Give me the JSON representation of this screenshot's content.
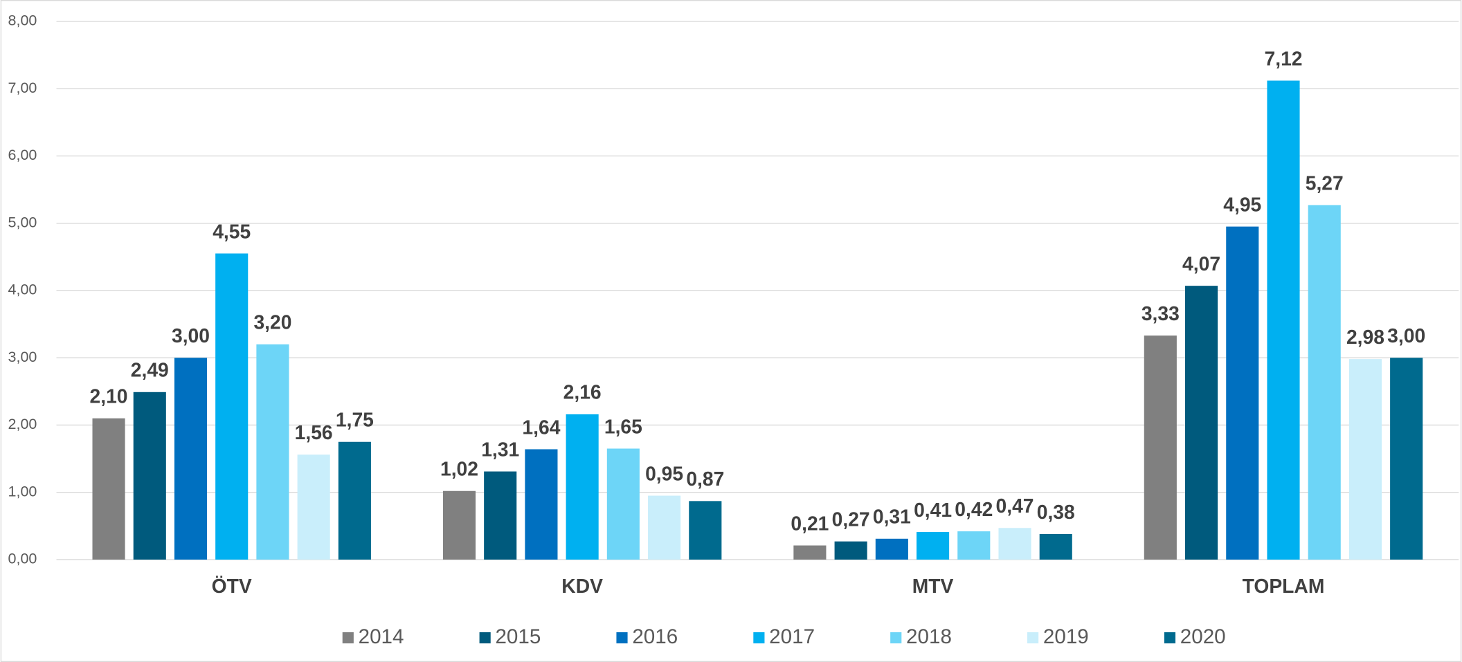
{
  "chart_data": {
    "type": "bar",
    "categories": [
      "ÖTV",
      "KDV",
      "MTV",
      "TOPLAM"
    ],
    "series": [
      {
        "name": "2014",
        "color": "#808080",
        "values": [
          2.1,
          1.02,
          0.21,
          3.33
        ],
        "value_labels": [
          "2,10",
          "1,02",
          "0,21",
          "3,33"
        ]
      },
      {
        "name": "2015",
        "color": "#005a7d",
        "values": [
          2.49,
          1.31,
          0.27,
          4.07
        ],
        "value_labels": [
          "2,49",
          "1,31",
          "0,27",
          "4,07"
        ]
      },
      {
        "name": "2016",
        "color": "#0070c0",
        "values": [
          3.0,
          1.64,
          0.31,
          4.95
        ],
        "value_labels": [
          "3,00",
          "1,64",
          "0,31",
          "4,95"
        ]
      },
      {
        "name": "2017",
        "color": "#00b0f0",
        "values": [
          4.55,
          2.16,
          0.41,
          7.12
        ],
        "value_labels": [
          "4,55",
          "2,16",
          "0,41",
          "7,12"
        ]
      },
      {
        "name": "2018",
        "color": "#6dd5f7",
        "values": [
          3.2,
          1.65,
          0.42,
          5.27
        ],
        "value_labels": [
          "3,20",
          "1,65",
          "0,42",
          "5,27"
        ]
      },
      {
        "name": "2019",
        "color": "#c9eefb",
        "values": [
          1.56,
          0.95,
          0.47,
          2.98
        ],
        "value_labels": [
          "1,56",
          "0,95",
          "0,47",
          "2,98"
        ]
      },
      {
        "name": "2020",
        "color": "#006a8e",
        "values": [
          1.75,
          0.87,
          0.38,
          3.0
        ],
        "value_labels": [
          "1,75",
          "0,87",
          "0,38",
          "3,00"
        ]
      }
    ],
    "ylim": [
      0,
      8
    ],
    "yticks": [
      {
        "value": 0,
        "label": "0,00"
      },
      {
        "value": 1,
        "label": "1,00"
      },
      {
        "value": 2,
        "label": "2,00"
      },
      {
        "value": 3,
        "label": "3,00"
      },
      {
        "value": 4,
        "label": "4,00"
      },
      {
        "value": 5,
        "label": "5,00"
      },
      {
        "value": 6,
        "label": "6,00"
      },
      {
        "value": 7,
        "label": "7,00"
      },
      {
        "value": 8,
        "label": "8,00"
      }
    ],
    "grid": true,
    "legend": "bottom"
  }
}
